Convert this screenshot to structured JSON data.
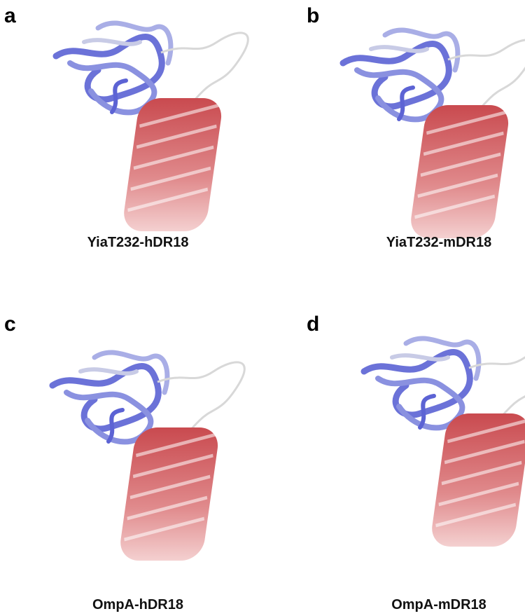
{
  "panels": [
    {
      "label": "a",
      "caption": "YiaT232-hDR18"
    },
    {
      "label": "b",
      "caption": "YiaT232-mDR18"
    },
    {
      "label": "c",
      "caption": "OmpA-hDR18"
    },
    {
      "label": "d",
      "caption": "OmpA-mDR18"
    }
  ]
}
